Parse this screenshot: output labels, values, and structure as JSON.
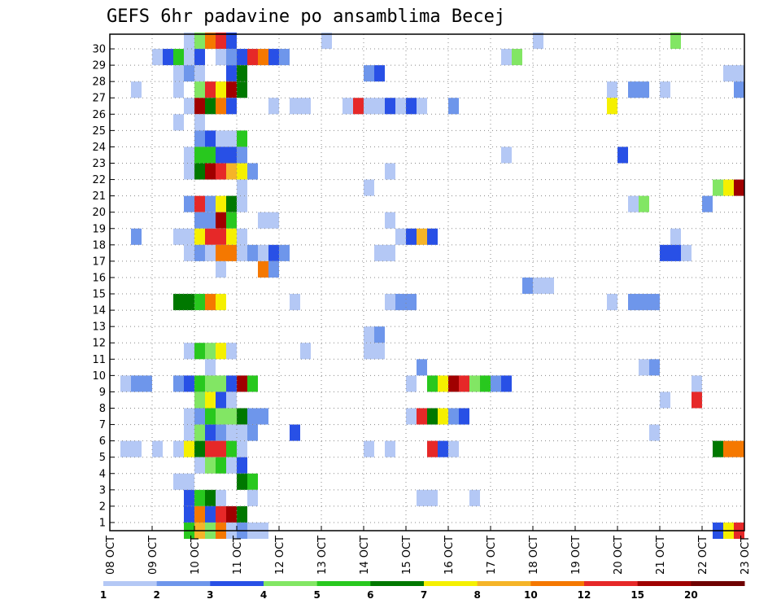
{
  "chart_data": {
    "type": "heatmap",
    "title": "GEFS 6hr padavine po ansamblima Becej",
    "xlabel": "",
    "ylabel": "",
    "x_tick_labels": [
      "08 OCT",
      "09 OCT",
      "10 OCT",
      "11 OCT",
      "12 OCT",
      "13 OCT",
      "14 OCT",
      "15 OCT",
      "16 OCT",
      "17 OCT",
      "18 OCT",
      "19 OCT",
      "20 OCT",
      "21 OCT",
      "22 OCT",
      "23 OCT"
    ],
    "y_tick_labels": [
      "1",
      "2",
      "3",
      "4",
      "5",
      "6",
      "7",
      "8",
      "9",
      "10",
      "11",
      "12",
      "13",
      "14",
      "15",
      "16",
      "17",
      "18",
      "19",
      "20",
      "21",
      "22",
      "23",
      "24",
      "25",
      "26",
      "27",
      "28",
      "29",
      "30"
    ],
    "xlim": [
      0,
      60
    ],
    "ylim": [
      0,
      30
    ],
    "grid": true,
    "colorbar": {
      "levels": [
        "1",
        "2",
        "3",
        "4",
        "5",
        "6",
        "7",
        "8",
        "10",
        "12",
        "15",
        "20"
      ],
      "colors": [
        "#b4c8f5",
        "#6e96eb",
        "#2850e6",
        "#82e664",
        "#28c81e",
        "#007800",
        "#f5f000",
        "#f5b428",
        "#f57800",
        "#e62828",
        "#a00000",
        "#6e0000"
      ]
    },
    "cells": [
      [
        7,
        30,
        1
      ],
      [
        8,
        30,
        4
      ],
      [
        9,
        30,
        10
      ],
      [
        10,
        30,
        12
      ],
      [
        11,
        30,
        3
      ],
      [
        20,
        30,
        1
      ],
      [
        40,
        30,
        1
      ],
      [
        53,
        30,
        4
      ],
      [
        4,
        29,
        1
      ],
      [
        5,
        29,
        3
      ],
      [
        6,
        29,
        5
      ],
      [
        7,
        29,
        1
      ],
      [
        8,
        29,
        3
      ],
      [
        10,
        29,
        1
      ],
      [
        11,
        29,
        2
      ],
      [
        12,
        29,
        3
      ],
      [
        13,
        29,
        12
      ],
      [
        14,
        29,
        10
      ],
      [
        15,
        29,
        3
      ],
      [
        16,
        29,
        2
      ],
      [
        37,
        29,
        1
      ],
      [
        38,
        29,
        4
      ],
      [
        6,
        28,
        1
      ],
      [
        7,
        28,
        2
      ],
      [
        8,
        28,
        1
      ],
      [
        11,
        28,
        3
      ],
      [
        12,
        28,
        6
      ],
      [
        24,
        28,
        2
      ],
      [
        25,
        28,
        3
      ],
      [
        58,
        28,
        1
      ],
      [
        59,
        28,
        1
      ],
      [
        2,
        27,
        1
      ],
      [
        6,
        27,
        1
      ],
      [
        8,
        27,
        4
      ],
      [
        9,
        27,
        12
      ],
      [
        10,
        27,
        7
      ],
      [
        11,
        27,
        15
      ],
      [
        12,
        27,
        6
      ],
      [
        47,
        27,
        1
      ],
      [
        49,
        27,
        2
      ],
      [
        50,
        27,
        2
      ],
      [
        52,
        27,
        1
      ],
      [
        59,
        27,
        2
      ],
      [
        7,
        26,
        1
      ],
      [
        8,
        26,
        15
      ],
      [
        9,
        26,
        6
      ],
      [
        10,
        26,
        10
      ],
      [
        11,
        26,
        3
      ],
      [
        15,
        26,
        1
      ],
      [
        17,
        26,
        1
      ],
      [
        18,
        26,
        1
      ],
      [
        22,
        26,
        1
      ],
      [
        23,
        26,
        12
      ],
      [
        24,
        26,
        1
      ],
      [
        25,
        26,
        1
      ],
      [
        26,
        26,
        3
      ],
      [
        27,
        26,
        1
      ],
      [
        28,
        26,
        3
      ],
      [
        29,
        26,
        1
      ],
      [
        32,
        26,
        2
      ],
      [
        47,
        26,
        7
      ],
      [
        6,
        25,
        1
      ],
      [
        8,
        25,
        1
      ],
      [
        8,
        24,
        2
      ],
      [
        9,
        24,
        3
      ],
      [
        10,
        24,
        1
      ],
      [
        11,
        24,
        1
      ],
      [
        12,
        24,
        5
      ],
      [
        7,
        23,
        1
      ],
      [
        8,
        23,
        5
      ],
      [
        9,
        23,
        5
      ],
      [
        10,
        23,
        3
      ],
      [
        11,
        23,
        3
      ],
      [
        12,
        23,
        2
      ],
      [
        37,
        23,
        1
      ],
      [
        48,
        23,
        3
      ],
      [
        7,
        22,
        1
      ],
      [
        8,
        22,
        6
      ],
      [
        9,
        22,
        15
      ],
      [
        10,
        22,
        12
      ],
      [
        11,
        22,
        8
      ],
      [
        12,
        22,
        7
      ],
      [
        13,
        22,
        2
      ],
      [
        26,
        22,
        1
      ],
      [
        12,
        21,
        1
      ],
      [
        24,
        21,
        1
      ],
      [
        57,
        21,
        4
      ],
      [
        58,
        21,
        7
      ],
      [
        59,
        21,
        15
      ],
      [
        7,
        20,
        2
      ],
      [
        8,
        20,
        12
      ],
      [
        9,
        20,
        2
      ],
      [
        10,
        20,
        7
      ],
      [
        11,
        20,
        6
      ],
      [
        12,
        20,
        1
      ],
      [
        49,
        20,
        1
      ],
      [
        50,
        20,
        4
      ],
      [
        56,
        20,
        2
      ],
      [
        8,
        19,
        2
      ],
      [
        9,
        19,
        2
      ],
      [
        10,
        19,
        15
      ],
      [
        11,
        19,
        5
      ],
      [
        14,
        19,
        1
      ],
      [
        15,
        19,
        1
      ],
      [
        26,
        19,
        1
      ],
      [
        2,
        18,
        2
      ],
      [
        6,
        18,
        1
      ],
      [
        7,
        18,
        1
      ],
      [
        8,
        18,
        7
      ],
      [
        9,
        18,
        12
      ],
      [
        10,
        18,
        12
      ],
      [
        11,
        18,
        7
      ],
      [
        12,
        18,
        1
      ],
      [
        27,
        18,
        1
      ],
      [
        28,
        18,
        3
      ],
      [
        29,
        18,
        8
      ],
      [
        30,
        18,
        3
      ],
      [
        53,
        18,
        1
      ],
      [
        7,
        17,
        1
      ],
      [
        8,
        17,
        2
      ],
      [
        9,
        17,
        1
      ],
      [
        10,
        17,
        10
      ],
      [
        11,
        17,
        10
      ],
      [
        12,
        17,
        1
      ],
      [
        13,
        17,
        2
      ],
      [
        14,
        17,
        1
      ],
      [
        15,
        17,
        3
      ],
      [
        16,
        17,
        2
      ],
      [
        25,
        17,
        1
      ],
      [
        26,
        17,
        1
      ],
      [
        52,
        17,
        3
      ],
      [
        53,
        17,
        3
      ],
      [
        54,
        17,
        1
      ],
      [
        10,
        16,
        1
      ],
      [
        14,
        16,
        10
      ],
      [
        15,
        16,
        2
      ],
      [
        39,
        15,
        2
      ],
      [
        40,
        15,
        1
      ],
      [
        41,
        15,
        1
      ],
      [
        6,
        14,
        6
      ],
      [
        7,
        14,
        6
      ],
      [
        8,
        14,
        5
      ],
      [
        9,
        14,
        10
      ],
      [
        10,
        14,
        7
      ],
      [
        17,
        14,
        1
      ],
      [
        26,
        14,
        1
      ],
      [
        27,
        14,
        2
      ],
      [
        28,
        14,
        2
      ],
      [
        47,
        14,
        1
      ],
      [
        49,
        14,
        2
      ],
      [
        50,
        14,
        2
      ],
      [
        51,
        14,
        2
      ],
      [
        24,
        12,
        1
      ],
      [
        25,
        12,
        2
      ],
      [
        7,
        11,
        1
      ],
      [
        8,
        11,
        5
      ],
      [
        9,
        11,
        4
      ],
      [
        10,
        11,
        7
      ],
      [
        11,
        11,
        1
      ],
      [
        18,
        11,
        1
      ],
      [
        24,
        11,
        1
      ],
      [
        25,
        11,
        1
      ],
      [
        9,
        10,
        1
      ],
      [
        29,
        10,
        2
      ],
      [
        50,
        10,
        1
      ],
      [
        51,
        10,
        2
      ],
      [
        1,
        9,
        1
      ],
      [
        2,
        9,
        2
      ],
      [
        3,
        9,
        2
      ],
      [
        6,
        9,
        2
      ],
      [
        7,
        9,
        3
      ],
      [
        8,
        9,
        5
      ],
      [
        9,
        9,
        4
      ],
      [
        10,
        9,
        4
      ],
      [
        11,
        9,
        3
      ],
      [
        12,
        9,
        15
      ],
      [
        13,
        9,
        5
      ],
      [
        28,
        9,
        1
      ],
      [
        30,
        9,
        5
      ],
      [
        31,
        9,
        7
      ],
      [
        32,
        9,
        15
      ],
      [
        33,
        9,
        12
      ],
      [
        34,
        9,
        4
      ],
      [
        35,
        9,
        5
      ],
      [
        36,
        9,
        2
      ],
      [
        37,
        9,
        3
      ],
      [
        55,
        9,
        1
      ],
      [
        8,
        8,
        4
      ],
      [
        9,
        8,
        7
      ],
      [
        10,
        8,
        3
      ],
      [
        11,
        8,
        1
      ],
      [
        52,
        8,
        1
      ],
      [
        55,
        8,
        12
      ],
      [
        7,
        7,
        1
      ],
      [
        8,
        7,
        2
      ],
      [
        9,
        7,
        5
      ],
      [
        10,
        7,
        4
      ],
      [
        11,
        7,
        4
      ],
      [
        12,
        7,
        6
      ],
      [
        13,
        7,
        2
      ],
      [
        14,
        7,
        2
      ],
      [
        28,
        7,
        1
      ],
      [
        29,
        7,
        12
      ],
      [
        30,
        7,
        6
      ],
      [
        31,
        7,
        7
      ],
      [
        32,
        7,
        2
      ],
      [
        33,
        7,
        3
      ],
      [
        7,
        6,
        1
      ],
      [
        8,
        6,
        4
      ],
      [
        9,
        6,
        3
      ],
      [
        10,
        6,
        2
      ],
      [
        11,
        6,
        1
      ],
      [
        12,
        6,
        1
      ],
      [
        13,
        6,
        2
      ],
      [
        17,
        6,
        3
      ],
      [
        51,
        6,
        1
      ],
      [
        1,
        5,
        1
      ],
      [
        2,
        5,
        1
      ],
      [
        4,
        5,
        1
      ],
      [
        6,
        5,
        1
      ],
      [
        7,
        5,
        7
      ],
      [
        8,
        5,
        6
      ],
      [
        9,
        5,
        12
      ],
      [
        10,
        5,
        12
      ],
      [
        11,
        5,
        5
      ],
      [
        12,
        5,
        1
      ],
      [
        24,
        5,
        1
      ],
      [
        26,
        5,
        1
      ],
      [
        30,
        5,
        12
      ],
      [
        31,
        5,
        3
      ],
      [
        32,
        5,
        1
      ],
      [
        57,
        5,
        6
      ],
      [
        58,
        5,
        10
      ],
      [
        59,
        5,
        10
      ],
      [
        8,
        4,
        1
      ],
      [
        9,
        4,
        4
      ],
      [
        10,
        4,
        5
      ],
      [
        11,
        4,
        1
      ],
      [
        12,
        4,
        3
      ],
      [
        6,
        3,
        1
      ],
      [
        7,
        3,
        1
      ],
      [
        12,
        3,
        6
      ],
      [
        13,
        3,
        5
      ],
      [
        7,
        2,
        3
      ],
      [
        8,
        2,
        5
      ],
      [
        9,
        2,
        6
      ],
      [
        10,
        2,
        1
      ],
      [
        13,
        2,
        1
      ],
      [
        29,
        2,
        1
      ],
      [
        30,
        2,
        1
      ],
      [
        34,
        2,
        1
      ],
      [
        7,
        1,
        3
      ],
      [
        8,
        1,
        10
      ],
      [
        9,
        1,
        3
      ],
      [
        10,
        1,
        12
      ],
      [
        11,
        1,
        15
      ],
      [
        12,
        1,
        6
      ],
      [
        7,
        0,
        5
      ],
      [
        8,
        0,
        8
      ],
      [
        9,
        0,
        4
      ],
      [
        10,
        0,
        10
      ],
      [
        11,
        0,
        1
      ],
      [
        12,
        0,
        2
      ],
      [
        13,
        0,
        1
      ],
      [
        14,
        0,
        1
      ],
      [
        57,
        0,
        3
      ],
      [
        58,
        0,
        7
      ],
      [
        59,
        0,
        12
      ]
    ]
  }
}
